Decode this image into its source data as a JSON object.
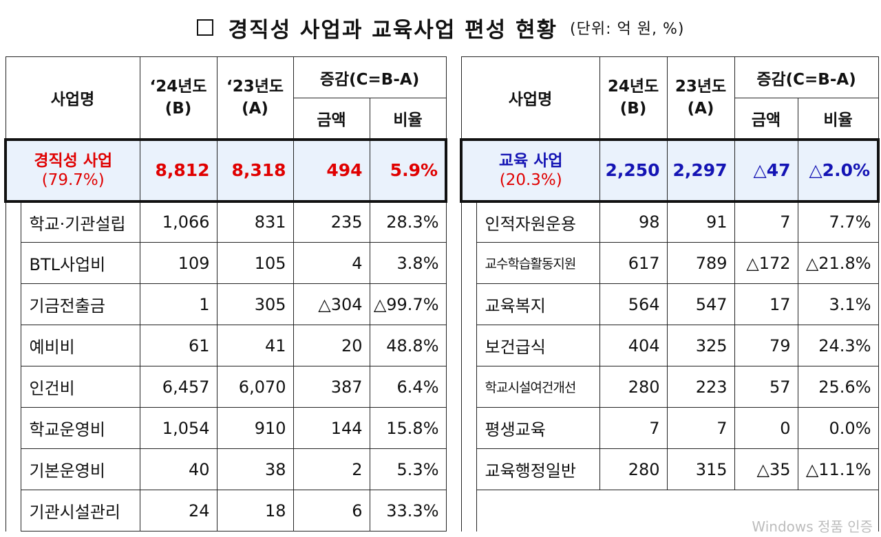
{
  "title": {
    "text": "경직성 사업과 교육사업 편성 현황",
    "unit": "(단위: 억 원, %)"
  },
  "left": {
    "headers": {
      "name": "사업명",
      "col_b": "‘24년도\n(B)",
      "col_a": "‘23년도\n(A)",
      "diff": "증감(C=B-A)",
      "amount": "금액",
      "rate": "비율"
    },
    "summary": {
      "name": "경직성 사업",
      "share": "(79.7%)",
      "b": "8,812",
      "a": "8,318",
      "amount": "494",
      "rate": "5.9%"
    },
    "rows": [
      {
        "name": "학교·기관설립",
        "b": "1,066",
        "a": "831",
        "amount": "235",
        "rate": "28.3%"
      },
      {
        "name": "BTL사업비",
        "b": "109",
        "a": "105",
        "amount": "4",
        "rate": "3.8%"
      },
      {
        "name": "기금전출금",
        "b": "1",
        "a": "305",
        "amount": "△304",
        "rate": "△99.7%"
      },
      {
        "name": "예비비",
        "b": "61",
        "a": "41",
        "amount": "20",
        "rate": "48.8%"
      },
      {
        "name": "인건비",
        "b": "6,457",
        "a": "6,070",
        "amount": "387",
        "rate": "6.4%"
      },
      {
        "name": "학교운영비",
        "b": "1,054",
        "a": "910",
        "amount": "144",
        "rate": "15.8%"
      },
      {
        "name": "기본운영비",
        "b": "40",
        "a": "38",
        "amount": "2",
        "rate": "5.3%"
      },
      {
        "name": "기관시설관리",
        "b": "24",
        "a": "18",
        "amount": "6",
        "rate": "33.3%"
      }
    ]
  },
  "right": {
    "headers": {
      "name": "사업명",
      "col_b": "24년도\n(B)",
      "col_a": "23년도\n(A)",
      "diff": "증감(C=B-A)",
      "amount": "금액",
      "rate": "비율"
    },
    "summary": {
      "name": "교육 사업",
      "share": "(20.3%)",
      "b": "2,250",
      "a": "2,297",
      "amount": "△47",
      "rate": "△2.0%"
    },
    "rows": [
      {
        "name": "인적자원운용",
        "b": "98",
        "a": "91",
        "amount": "7",
        "rate": "7.7%"
      },
      {
        "name": "교수학습활동지원",
        "b": "617",
        "a": "789",
        "amount": "△172",
        "rate": "△21.8%"
      },
      {
        "name": "교육복지",
        "b": "564",
        "a": "547",
        "amount": "17",
        "rate": "3.1%"
      },
      {
        "name": "보건급식",
        "b": "404",
        "a": "325",
        "amount": "79",
        "rate": "24.3%"
      },
      {
        "name": "학교시설여건개선",
        "b": "280",
        "a": "223",
        "amount": "57",
        "rate": "25.6%"
      },
      {
        "name": "평생교육",
        "b": "7",
        "a": "7",
        "amount": "0",
        "rate": "0.0%"
      },
      {
        "name": "교육행정일반",
        "b": "280",
        "a": "315",
        "amount": "△35",
        "rate": "△11.1%"
      }
    ]
  },
  "watermark": "Windows 정품 인증",
  "colors": {
    "left_accent": "#e00000",
    "right_accent": "#1414b4",
    "highlight_bg": "#eaf2fc"
  }
}
